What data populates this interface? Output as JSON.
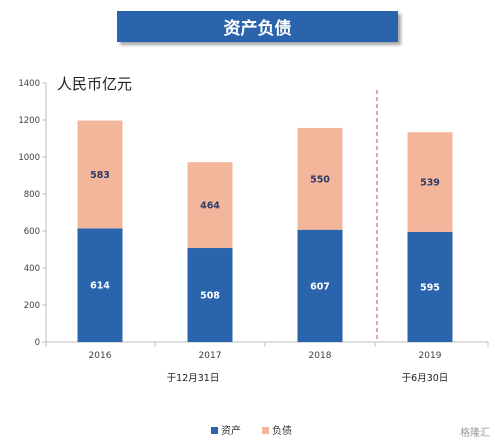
{
  "title": "资产负债",
  "unit_label": "人民币亿元",
  "watermark": "格隆汇",
  "group_notes": {
    "left": "于12月31日",
    "right": "于6月30日"
  },
  "colors": {
    "assets": "#2a64ad",
    "liabilities": "#f4b69b",
    "divider": "#c0504d"
  },
  "chart_data": {
    "type": "bar",
    "stacked": true,
    "categories": [
      "2016",
      "2017",
      "2018",
      "2019"
    ],
    "series": [
      {
        "name": "资产",
        "values": [
          614,
          508,
          607,
          595
        ],
        "color": "#2a64ad",
        "label_color": "#ffffff"
      },
      {
        "name": "负债",
        "values": [
          583,
          464,
          550,
          539
        ],
        "color": "#f4b69b",
        "label_color": "#2b3a67"
      }
    ],
    "ylim": [
      0,
      1400
    ],
    "yticks": [
      0,
      200,
      400,
      600,
      800,
      1000,
      1200,
      1400
    ],
    "grid": false,
    "legend": "bottom"
  }
}
